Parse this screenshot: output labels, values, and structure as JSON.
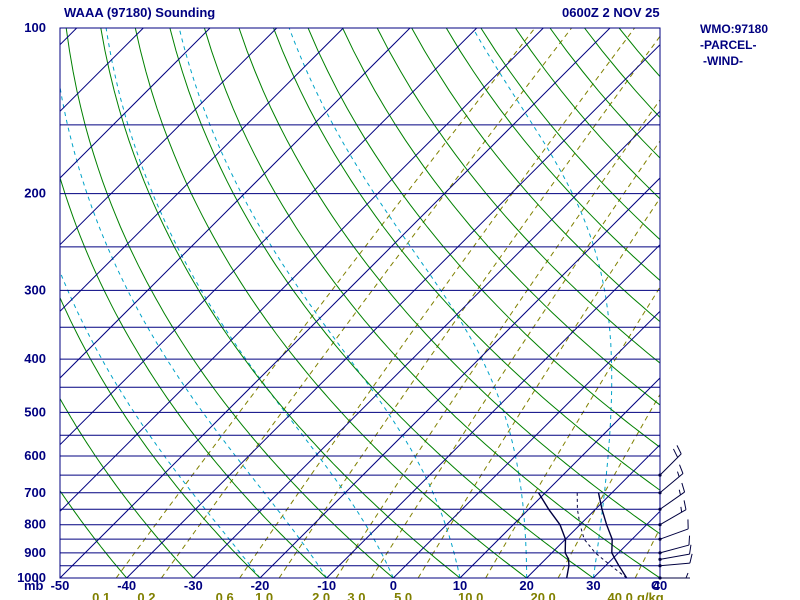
{
  "header": {
    "title": "WAAA (97180) Sounding",
    "valid_time": "0600Z  2 NOV 25"
  },
  "side_legend": {
    "station": "WMO:97180",
    "parcel": "-PARCEL-",
    "wind": "-WIND-"
  },
  "chart_data": {
    "type": "skewt-log-p",
    "title": "WAAA (97180) Sounding",
    "valid_time": "0600Z  2 NOV 25",
    "station": "WMO:97180",
    "pressure_axis": {
      "unit": "mb",
      "tick_labels": [
        100,
        200,
        300,
        400,
        500,
        600,
        700,
        800,
        900,
        1000
      ],
      "top_mb": 100,
      "bottom_mb": 1000,
      "isobar_interval_mb": 50,
      "scale": "log"
    },
    "temperature_axis": {
      "unit": "C",
      "tick_labels": [
        -50,
        -40,
        -30,
        -20,
        -10,
        0,
        10,
        20,
        30,
        40
      ],
      "min_c": -50,
      "max_c": 40,
      "skew_deg": 45
    },
    "mixing_ratio_axis": {
      "unit": "g/kg",
      "tick_labels": [
        "0.1",
        "0.2",
        "0.6",
        "1.0",
        "2.0",
        "3.0",
        "5.0",
        "10.0",
        "20.0",
        "40.0"
      ]
    },
    "isotherms_c": [
      -130,
      -120,
      -110,
      -100,
      -90,
      -80,
      -70,
      -60,
      -50,
      -40,
      -30,
      -20,
      -10,
      0,
      10,
      20,
      30,
      40
    ],
    "dry_adiabats_theta_c": [
      -40,
      -30,
      -20,
      -10,
      0,
      10,
      20,
      30,
      40,
      50,
      60,
      70,
      80,
      90,
      100,
      110,
      120,
      130,
      140,
      150,
      160
    ],
    "moist_adiabats_thetaw_c": [
      -20,
      -10,
      0,
      10,
      20,
      30
    ],
    "mixing_ratio_lines_gkg": [
      0.1,
      0.2,
      0.6,
      1.0,
      2.0,
      3.0,
      5.0,
      10.0,
      20.0,
      40.0
    ],
    "colors": {
      "isobar": "#000080",
      "isotherm": "#000080",
      "dry_adiabat": "#008000",
      "moist_adiabat": "#00a3c8",
      "mixing_ratio": "#808000",
      "axis_text": "#000080",
      "mixing_text": "#808000",
      "temperature_trace": "#000040",
      "dewpoint_trace": "#000040",
      "parcel_trace": "#000040",
      "wind": "#000040"
    },
    "sounding": {
      "temperature_p_t": [
        [
          1000,
          35
        ],
        [
          950,
          32
        ],
        [
          925,
          30.5
        ],
        [
          900,
          29
        ],
        [
          850,
          27
        ],
        [
          800,
          24
        ],
        [
          750,
          21
        ],
        [
          700,
          18
        ]
      ],
      "dewpoint_p_t": [
        [
          1000,
          26
        ],
        [
          950,
          24.5
        ],
        [
          925,
          23.5
        ],
        [
          900,
          22
        ],
        [
          850,
          20
        ],
        [
          800,
          17
        ],
        [
          750,
          13
        ],
        [
          700,
          9
        ]
      ],
      "parcel_p_t": [
        [
          1000,
          35
        ],
        [
          950,
          30.8
        ],
        [
          900,
          26.5
        ],
        [
          850,
          22.8
        ],
        [
          800,
          20
        ],
        [
          750,
          17.3
        ],
        [
          700,
          14.8
        ]
      ],
      "wind_p_dir_spd": [
        [
          1000,
          90,
          8
        ],
        [
          950,
          85,
          10
        ],
        [
          925,
          80,
          10
        ],
        [
          900,
          75,
          12
        ],
        [
          850,
          70,
          12
        ],
        [
          800,
          60,
          15
        ],
        [
          750,
          55,
          15
        ],
        [
          700,
          50,
          18
        ],
        [
          650,
          45,
          20
        ]
      ]
    }
  }
}
